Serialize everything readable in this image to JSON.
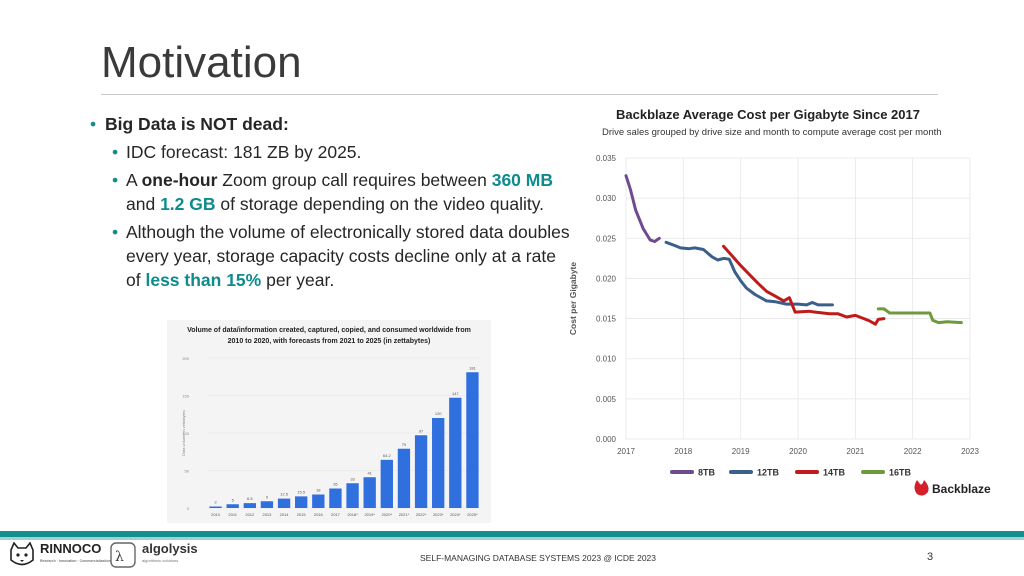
{
  "slide": {
    "title": "Motivation",
    "bullets": {
      "main": "Big Data is NOT dead:",
      "sub1": "IDC forecast: 181 ZB by 2025.",
      "sub2": {
        "p1": "A ",
        "b1": "one-hour",
        "p2": " Zoom group call requires between ",
        "h1": "360 MB",
        "p3": " and ",
        "h2": "1.2 GB",
        "p4": " of storage depending on the video quality."
      },
      "sub3": {
        "p1": "Although the volume of electronically stored data doubles every year, storage capacity costs decline only at a rate of ",
        "h1": "less than 15%",
        "p2": " per year."
      }
    },
    "footer": {
      "center": "SELF-MANAGING DATABASE SYSTEMS 2023 @ ICDE 2023",
      "page": "3",
      "logo1_name": "RINNOCO",
      "logo1_sub": "Research · Innovation · Commercialization",
      "logo2_name": "algolysis",
      "logo2_sub": "algorithmic solutions"
    },
    "colors": {
      "accent": "#0f8b8d",
      "footer_band": "#138f8f"
    }
  },
  "chart_data": [
    {
      "type": "bar",
      "title": "Volume of data/information created, captured, copied, and consumed worldwide from 2010 to 2020, with forecasts from 2021 to 2025 (in zettabytes)",
      "title_lines": [
        "Volume of data/information created, captured, copied, and consumed worldwide from",
        "2010 to 2020, with forecasts from 2021 to 2025 (in zettabytes)"
      ],
      "ylabel": "Data volume in zettabytes",
      "categories": [
        "2010",
        "2011",
        "2012",
        "2013",
        "2014",
        "2015",
        "2016",
        "2017",
        "2018*",
        "2019*",
        "2020*",
        "2021*",
        "2022*",
        "2023*",
        "2024*",
        "2025*"
      ],
      "values": [
        2,
        5,
        6.5,
        9,
        12.5,
        15.5,
        18,
        26,
        33,
        41,
        64.2,
        79,
        97,
        120,
        147,
        181
      ],
      "value_labels": [
        "2",
        "5",
        "6.5",
        "9",
        "12.5",
        "15.5",
        "18",
        "26",
        "33",
        "41",
        "64.2",
        "79",
        "97",
        "120",
        "147",
        "181"
      ],
      "yticks": [
        0,
        50,
        100,
        150,
        200
      ],
      "ylim": [
        0,
        200
      ],
      "bar_color": "#2f6fde"
    },
    {
      "type": "line",
      "title": "Backblaze Average Cost per Gigabyte Since 2017",
      "subtitle": "Drive sales grouped by drive size and month to compute average cost per month",
      "ylabel": "Cost per Gigabyte",
      "xlim": [
        2017,
        2023
      ],
      "ylim": [
        0,
        0.035
      ],
      "xticks": [
        "2017",
        "2018",
        "2019",
        "2020",
        "2021",
        "2022",
        "2023"
      ],
      "yticks": [
        "0.000",
        "0.005",
        "0.010",
        "0.015",
        "0.020",
        "0.025",
        "0.030",
        "0.035"
      ],
      "brand": "Backblaze",
      "series": [
        {
          "name": "8TB",
          "color": "#6e4b8f",
          "x": [
            2017.0,
            2017.08,
            2017.17,
            2017.3,
            2017.42,
            2017.5,
            2017.58
          ],
          "y": [
            0.0328,
            0.031,
            0.0285,
            0.0262,
            0.0248,
            0.0246,
            0.025
          ]
        },
        {
          "name": "12TB",
          "color": "#3a5f8a",
          "x": [
            2017.7,
            2017.85,
            2017.95,
            2018.1,
            2018.2,
            2018.35,
            2018.5,
            2018.6,
            2018.7,
            2018.8,
            2018.9,
            2019.0,
            2019.1,
            2019.25,
            2019.45,
            2019.6,
            2019.8,
            2020.0,
            2020.15,
            2020.25,
            2020.35,
            2020.6
          ],
          "y": [
            0.0245,
            0.0241,
            0.0238,
            0.0237,
            0.0238,
            0.0236,
            0.0227,
            0.0223,
            0.0225,
            0.0224,
            0.0208,
            0.0197,
            0.0188,
            0.018,
            0.0172,
            0.0171,
            0.0168,
            0.0168,
            0.0167,
            0.017,
            0.0167,
            0.0167
          ]
        },
        {
          "name": "14TB",
          "color": "#c01a1a",
          "x": [
            2018.7,
            2018.85,
            2019.0,
            2019.15,
            2019.3,
            2019.45,
            2019.6,
            2019.75,
            2019.85,
            2019.95,
            2020.2,
            2020.3,
            2020.55,
            2020.7,
            2020.85,
            2021.0,
            2021.15,
            2021.25,
            2021.35,
            2021.4,
            2021.5
          ],
          "y": [
            0.024,
            0.0228,
            0.0216,
            0.0205,
            0.0194,
            0.0184,
            0.0178,
            0.0172,
            0.0176,
            0.0158,
            0.0159,
            0.0158,
            0.0156,
            0.0156,
            0.0152,
            0.0154,
            0.015,
            0.0147,
            0.0143,
            0.0149,
            0.015
          ]
        },
        {
          "name": "16TB",
          "color": "#6e9a3c",
          "x": [
            2021.4,
            2021.5,
            2021.6,
            2021.7,
            2022.0,
            2022.3,
            2022.35,
            2022.45,
            2022.6,
            2022.85
          ],
          "y": [
            0.0162,
            0.0162,
            0.0157,
            0.0157,
            0.0157,
            0.0157,
            0.0148,
            0.0145,
            0.0146,
            0.0145
          ]
        }
      ]
    }
  ]
}
